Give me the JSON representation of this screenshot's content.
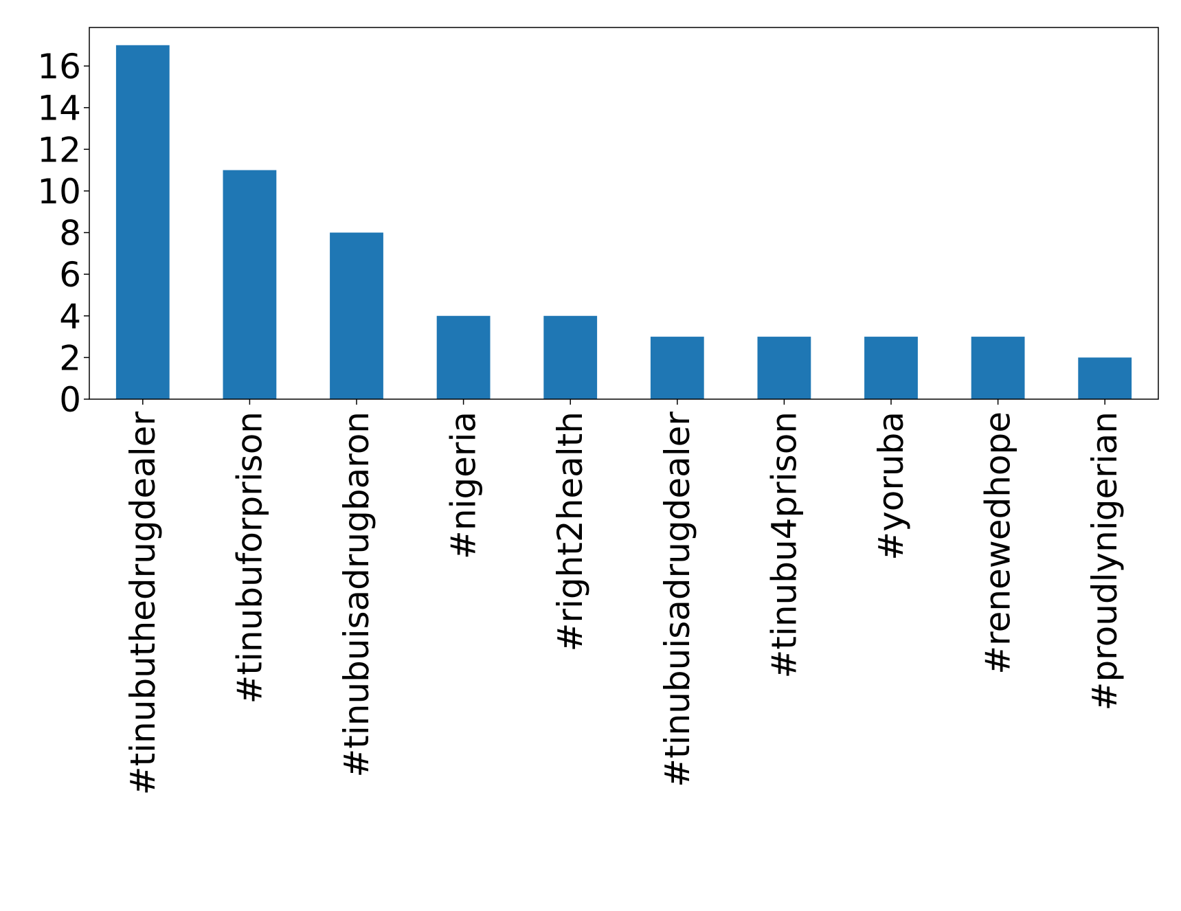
{
  "chart_data": {
    "type": "bar",
    "categories": [
      "#tinubuthedrugdealer",
      "#tinubuforprison",
      "#tinubuisadrugbaron",
      "#nigeria",
      "#right2health",
      "#tinubuisadrugdealer",
      "#tinubu4prison",
      "#yoruba",
      "#renewedhope",
      "#proudlynigerian"
    ],
    "values": [
      17,
      11,
      8,
      4,
      4,
      3,
      3,
      3,
      3,
      2
    ],
    "yticks": [
      "0",
      "2",
      "4",
      "6",
      "8",
      "10",
      "12",
      "14",
      "16"
    ],
    "ylim": [
      0,
      17.85
    ],
    "title": "",
    "xlabel": "",
    "ylabel": "",
    "grid": false,
    "legend": "none",
    "bar_color": "#1f77b4"
  }
}
